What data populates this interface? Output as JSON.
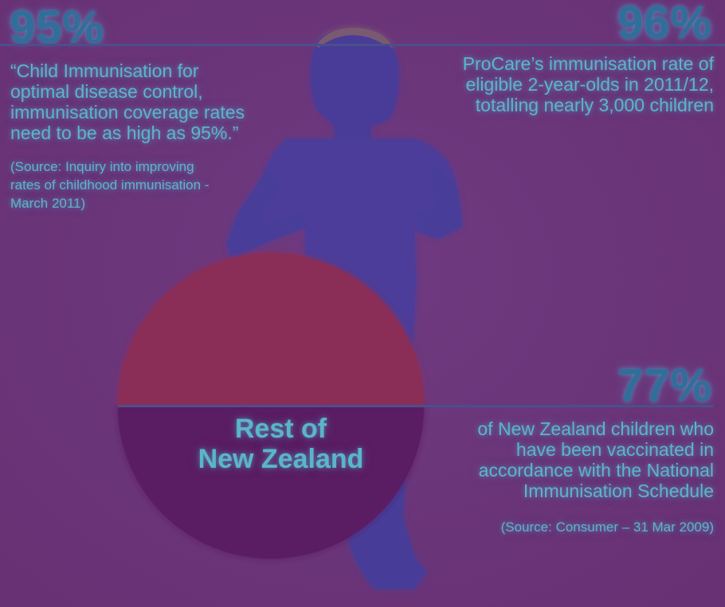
{
  "colors": {
    "background": "#6c3478",
    "figure": "#4c3a96",
    "ball_top": "#8a2f58",
    "ball_bottom": "#5a1a62",
    "stat_number": "#2f6f9a",
    "body_text": "#5ab6c6",
    "divider": "#4a4f8c"
  },
  "icons": {
    "figure": "child-silhouette-icon",
    "ball": "ball-icon"
  },
  "top_left": {
    "stat": "95%",
    "quote_lines": [
      "“Child Immunisation for",
      "optimal disease control,",
      "immunisation coverage rates",
      "need to be as high as 95%.”"
    ],
    "source_lines": [
      "(Source: Inquiry into improving",
      "rates of childhood immunisation -",
      "March 2011)"
    ]
  },
  "top_right": {
    "stat": "96%",
    "text_lines": [
      "ProCare’s immunisation rate of",
      "eligible 2-year-olds in 2011/12,",
      "totalling nearly 3,000 children"
    ]
  },
  "bottom_right": {
    "stat": "77%",
    "text_lines": [
      "of New Zealand children who",
      "have been vaccinated in",
      "accordance with the National",
      "Immunisation Schedule"
    ],
    "source": "(Source: Consumer – 31 Mar 2009)"
  },
  "ball": {
    "label_lines": [
      "Rest of",
      "New Zealand"
    ]
  }
}
